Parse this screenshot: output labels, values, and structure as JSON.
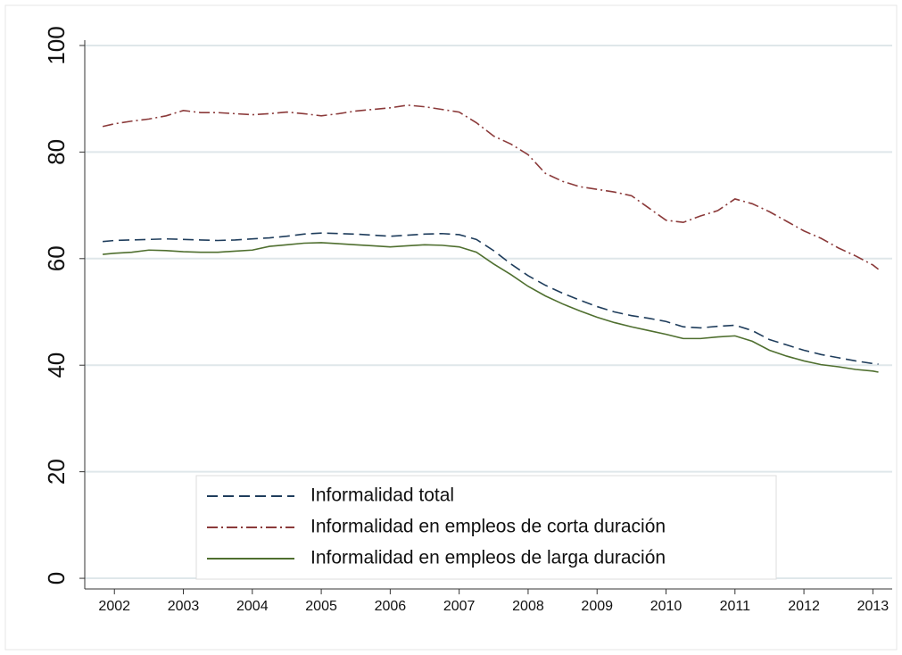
{
  "chart_data": {
    "type": "line",
    "x": [
      2001.83,
      2002,
      2002.25,
      2002.5,
      2002.75,
      2003,
      2003.25,
      2003.5,
      2003.75,
      2004,
      2004.25,
      2004.5,
      2004.75,
      2005,
      2005.25,
      2005.5,
      2005.75,
      2006,
      2006.25,
      2006.5,
      2006.75,
      2007,
      2007.25,
      2007.5,
      2007.75,
      2008,
      2008.25,
      2008.5,
      2008.75,
      2009,
      2009.25,
      2009.5,
      2009.75,
      2010,
      2010.25,
      2010.5,
      2010.75,
      2011,
      2011.25,
      2011.5,
      2011.75,
      2012,
      2012.25,
      2012.5,
      2012.75,
      2013,
      2013.08
    ],
    "series": [
      {
        "name": "Informalidad total",
        "color": "#1f3d5c",
        "dash": "dash",
        "values": [
          63.2,
          63.4,
          63.5,
          63.6,
          63.7,
          63.6,
          63.5,
          63.4,
          63.5,
          63.7,
          63.9,
          64.2,
          64.6,
          64.8,
          64.7,
          64.6,
          64.4,
          64.2,
          64.4,
          64.6,
          64.7,
          64.5,
          63.6,
          61.5,
          59,
          56.8,
          55,
          53.5,
          52.2,
          51,
          50,
          49.3,
          48.8,
          48.2,
          47.2,
          47,
          47.3,
          47.5,
          46.5,
          44.8,
          43.8,
          42.8,
          42,
          41.4,
          40.8,
          40.3,
          40.2
        ]
      },
      {
        "name": "Informalidad en empleos de corta duración",
        "color": "#8b3a3a",
        "dash": "dashdot",
        "values": [
          84.8,
          85.3,
          85.8,
          86.2,
          86.8,
          87.8,
          87.4,
          87.4,
          87.2,
          87,
          87.2,
          87.5,
          87.2,
          86.8,
          87.2,
          87.7,
          88,
          88.3,
          88.8,
          88.5,
          88,
          87.5,
          85.5,
          83,
          81.5,
          79.5,
          76,
          74.5,
          73.5,
          73,
          72.5,
          71.8,
          69.5,
          67.2,
          66.8,
          68,
          69,
          71.2,
          70.3,
          68.8,
          67,
          65.2,
          63.8,
          62,
          60.5,
          58.8,
          58
        ]
      },
      {
        "name": "Informalidad en empleos de larga duración",
        "color": "#4f6f2f",
        "dash": "solid",
        "values": [
          60.8,
          61,
          61.2,
          61.6,
          61.5,
          61.3,
          61.2,
          61.2,
          61.4,
          61.6,
          62.3,
          62.6,
          62.9,
          63,
          62.8,
          62.6,
          62.4,
          62.2,
          62.4,
          62.6,
          62.5,
          62.2,
          61.2,
          59,
          57,
          54.8,
          53,
          51.5,
          50.2,
          49,
          48,
          47.2,
          46.5,
          45.8,
          45,
          45,
          45.3,
          45.5,
          44.5,
          42.8,
          41.7,
          40.8,
          40.1,
          39.7,
          39.2,
          38.9,
          38.7
        ]
      }
    ],
    "xlim": [
      2001.57,
      2013.28
    ],
    "xticks": [
      2002,
      2003,
      2004,
      2005,
      2006,
      2007,
      2008,
      2009,
      2010,
      2011,
      2012,
      2013
    ],
    "ylim": [
      -2,
      101
    ],
    "yticks": [
      0,
      20,
      40,
      60,
      80,
      100
    ],
    "grid": true,
    "legend": "lower center"
  }
}
